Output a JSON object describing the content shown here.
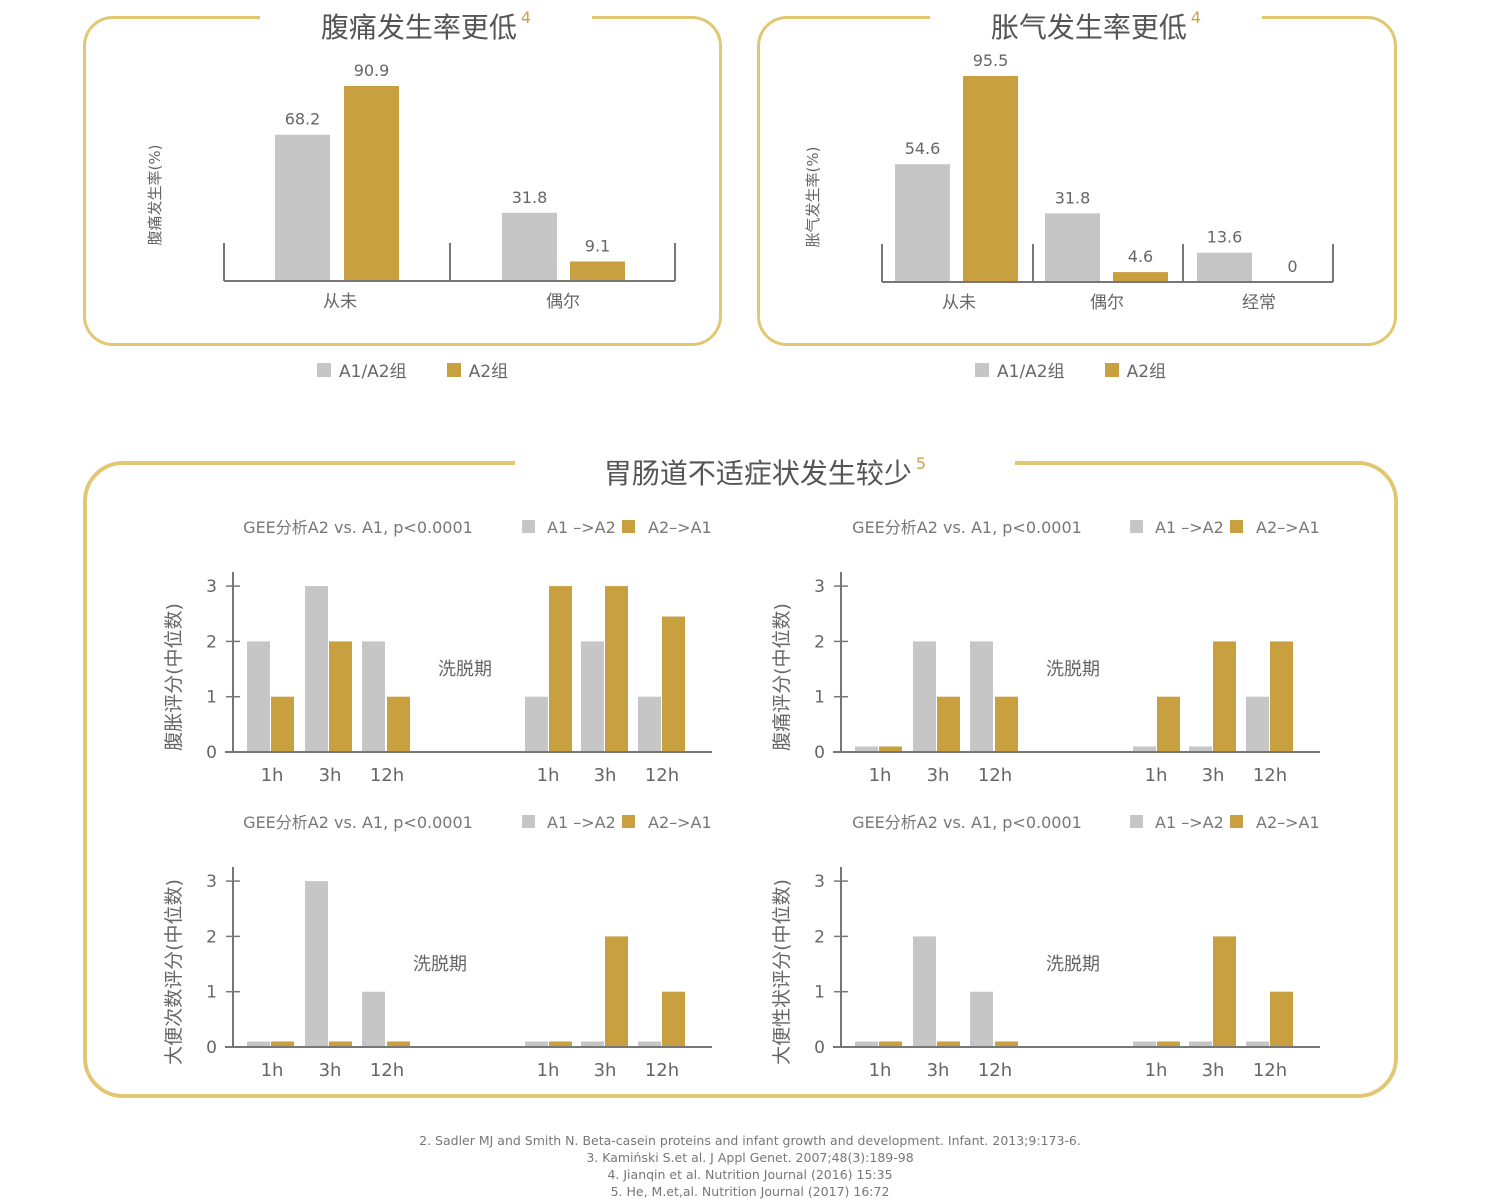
{
  "colors": {
    "grey": "#c6c6c6",
    "gold": "#c9a040",
    "frame": "#e2c773",
    "axis": "#777777"
  },
  "panel_top_left": {
    "title": "腹痛发生率更低",
    "sup": "4",
    "legend": [
      "A1/A2组",
      "A2组"
    ]
  },
  "panel_top_right": {
    "title": "胀气发生率更低",
    "sup": "4",
    "legend": [
      "A1/A2组",
      "A2组"
    ]
  },
  "panel_bottom": {
    "title": "胃肠道不适症状发生较少",
    "sup": "5"
  },
  "references": [
    "2. Sadler MJ and Smith N. Beta-casein proteins and infant growth and development. Infant. 2013;9:173-6.",
    "3. Kamiński S.et al. J Appl Genet. 2007;48(3):189-98",
    "4. Jianqin et al. Nutrition Journal (2016) 15:35",
    "5. He, M.et,al. Nutrition Journal (2017) 16:72"
  ],
  "chart_data": [
    {
      "type": "bar",
      "ylabel": "腹痛发生率(%)",
      "categories": [
        "从未",
        "偶尔"
      ],
      "series": [
        {
          "name": "A1/A2组",
          "values": [
            68.2,
            31.8
          ]
        },
        {
          "name": "A2组",
          "values": [
            90.9,
            9.1
          ]
        }
      ],
      "value_labels": [
        [
          "68.2",
          "31.8"
        ],
        [
          "90.9",
          "9.1"
        ]
      ]
    },
    {
      "type": "bar",
      "ylabel": "胀气发生率(%)",
      "categories": [
        "从未",
        "偶尔",
        "经常"
      ],
      "series": [
        {
          "name": "A1/A2组",
          "values": [
            54.6,
            31.8,
            13.6
          ]
        },
        {
          "name": "A2组",
          "values": [
            95.5,
            4.6,
            0
          ]
        }
      ],
      "value_labels": [
        [
          "54.6",
          "31.8",
          "13.6"
        ],
        [
          "95.5",
          "4.6",
          "0"
        ]
      ]
    },
    {
      "type": "bar",
      "title": "GEE分析A2 vs. A1, p<0.0001",
      "ylabel": "腹胀评分(中位数)",
      "categories": [
        "1h",
        "3h",
        "12h",
        "1h",
        "3h",
        "12h"
      ],
      "group_label": "洗脱期",
      "legend": [
        "A1 –>A2",
        "A2–>A1"
      ],
      "series": [
        {
          "name": "A1 –>A2",
          "values": [
            2,
            3,
            2,
            1,
            2,
            1
          ]
        },
        {
          "name": "A2–>A1",
          "values": [
            1,
            2,
            1,
            3,
            3,
            2.45
          ]
        }
      ],
      "yticks": [
        0,
        1,
        2,
        3
      ],
      "ylim": [
        0,
        3.3
      ]
    },
    {
      "type": "bar",
      "title": "GEE分析A2 vs. A1, p<0.0001",
      "ylabel": "腹痛评分(中位数)",
      "categories": [
        "1h",
        "3h",
        "12h",
        "1h",
        "3h",
        "12h"
      ],
      "group_label": "洗脱期",
      "legend": [
        "A1 –>A2",
        "A2–>A1"
      ],
      "series": [
        {
          "name": "A1 –>A2",
          "values": [
            0.1,
            2,
            2,
            0.1,
            0.1,
            1
          ]
        },
        {
          "name": "A2–>A1",
          "values": [
            0.1,
            1,
            1,
            1,
            2,
            2
          ]
        }
      ],
      "yticks": [
        0,
        1,
        2,
        3
      ],
      "ylim": [
        0,
        3.3
      ]
    },
    {
      "type": "bar",
      "title": "GEE分析A2 vs. A1, p<0.0001",
      "ylabel": "大便次数评分(中位数)",
      "categories": [
        "1h",
        "3h",
        "12h",
        "1h",
        "3h",
        "12h"
      ],
      "group_label": "洗脱期",
      "legend": [
        "A1 –>A2",
        "A2–>A1"
      ],
      "series": [
        {
          "name": "A1 –>A2",
          "values": [
            0.1,
            3,
            1,
            0.1,
            0.1,
            0.1
          ]
        },
        {
          "name": "A2–>A1",
          "values": [
            0.1,
            0.1,
            0.1,
            0.1,
            2,
            1
          ]
        }
      ],
      "yticks": [
        0,
        1,
        2,
        3
      ],
      "ylim": [
        0,
        3.3
      ]
    },
    {
      "type": "bar",
      "title": "GEE分析A2 vs. A1, p<0.0001",
      "ylabel": "大便性状评分(中位数)",
      "categories": [
        "1h",
        "3h",
        "12h",
        "1h",
        "3h",
        "12h"
      ],
      "group_label": "洗脱期",
      "legend": [
        "A1 –>A2",
        "A2–>A1"
      ],
      "series": [
        {
          "name": "A1 –>A2",
          "values": [
            0.1,
            2,
            1,
            0.1,
            0.1,
            0.1
          ]
        },
        {
          "name": "A2–>A1",
          "values": [
            0.1,
            0.1,
            0.1,
            0.1,
            2,
            1
          ]
        }
      ],
      "yticks": [
        0,
        1,
        2,
        3
      ],
      "ylim": [
        0,
        3.3
      ]
    }
  ]
}
